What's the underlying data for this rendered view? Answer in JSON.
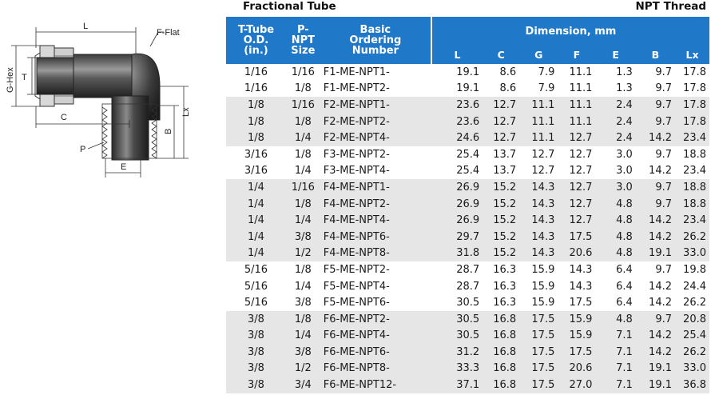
{
  "titles": {
    "left": "Fractional Tube",
    "right": "NPT Thread"
  },
  "diagram_labels": {
    "L": "L",
    "F": "F-Flat",
    "G": "G-Hex",
    "T": "T",
    "C": "C",
    "Lx": "Lx",
    "B": "B",
    "P": "P",
    "E": "E"
  },
  "header": {
    "tube_od": [
      "T-Tube",
      "O.D.",
      "(in.)"
    ],
    "p_npt": [
      "P-NPT",
      "Size"
    ],
    "ordering": [
      "Basic",
      "Ordering",
      "Number"
    ],
    "dimension": "Dimension, mm",
    "cols": [
      "L",
      "C",
      "G",
      "F",
      "E",
      "B",
      "Lx"
    ]
  },
  "rows": [
    {
      "shade": false,
      "cells": [
        "1/16",
        "1/16",
        "F1-ME-NPT1-",
        "19.1",
        "8.6",
        "7.9",
        "11.1",
        "1.3",
        "9.7",
        "17.8"
      ]
    },
    {
      "shade": false,
      "cells": [
        "1/16",
        "1/8",
        "F1-ME-NPT2-",
        "19.1",
        "8.6",
        "7.9",
        "11.1",
        "1.3",
        "9.7",
        "17.8"
      ]
    },
    {
      "shade": true,
      "cells": [
        "1/8",
        "1/16",
        "F2-ME-NPT1-",
        "23.6",
        "12.7",
        "11.1",
        "11.1",
        "2.4",
        "9.7",
        "17.8"
      ]
    },
    {
      "shade": true,
      "cells": [
        "1/8",
        "1/8",
        "F2-ME-NPT2-",
        "23.6",
        "12.7",
        "11.1",
        "11.1",
        "2.4",
        "9.7",
        "17.8"
      ]
    },
    {
      "shade": true,
      "cells": [
        "1/8",
        "1/4",
        "F2-ME-NPT4-",
        "24.6",
        "12.7",
        "11.1",
        "12.7",
        "2.4",
        "14.2",
        "23.4"
      ]
    },
    {
      "shade": false,
      "cells": [
        "3/16",
        "1/8",
        "F3-ME-NPT2-",
        "25.4",
        "13.7",
        "12.7",
        "12.7",
        "3.0",
        "9.7",
        "18.8"
      ]
    },
    {
      "shade": false,
      "cells": [
        "3/16",
        "1/4",
        "F3-ME-NPT4-",
        "25.4",
        "13.7",
        "12.7",
        "12.7",
        "3.0",
        "14.2",
        "23.4"
      ]
    },
    {
      "shade": true,
      "cells": [
        "1/4",
        "1/16",
        "F4-ME-NPT1-",
        "26.9",
        "15.2",
        "14.3",
        "12.7",
        "3.0",
        "9.7",
        "18.8"
      ]
    },
    {
      "shade": true,
      "cells": [
        "1/4",
        "1/8",
        "F4-ME-NPT2-",
        "26.9",
        "15.2",
        "14.3",
        "12.7",
        "4.8",
        "9.7",
        "18.8"
      ]
    },
    {
      "shade": true,
      "cells": [
        "1/4",
        "1/4",
        "F4-ME-NPT4-",
        "26.9",
        "15.2",
        "14.3",
        "12.7",
        "4.8",
        "14.2",
        "23.4"
      ]
    },
    {
      "shade": true,
      "cells": [
        "1/4",
        "3/8",
        "F4-ME-NPT6-",
        "29.7",
        "15.2",
        "14.3",
        "17.5",
        "4.8",
        "14.2",
        "26.2"
      ]
    },
    {
      "shade": true,
      "cells": [
        "1/4",
        "1/2",
        "F4-ME-NPT8-",
        "31.8",
        "15.2",
        "14.3",
        "20.6",
        "4.8",
        "19.1",
        "33.0"
      ]
    },
    {
      "shade": false,
      "cells": [
        "5/16",
        "1/8",
        "F5-ME-NPT2-",
        "28.7",
        "16.3",
        "15.9",
        "14.3",
        "6.4",
        "9.7",
        "19.8"
      ]
    },
    {
      "shade": false,
      "cells": [
        "5/16",
        "1/4",
        "F5-ME-NPT4-",
        "28.7",
        "16.3",
        "15.9",
        "14.3",
        "6.4",
        "14.2",
        "24.4"
      ]
    },
    {
      "shade": false,
      "cells": [
        "5/16",
        "3/8",
        "F5-ME-NPT6-",
        "30.5",
        "16.3",
        "15.9",
        "17.5",
        "6.4",
        "14.2",
        "26.2"
      ]
    },
    {
      "shade": true,
      "cells": [
        "3/8",
        "1/8",
        "F6-ME-NPT2-",
        "30.5",
        "16.8",
        "17.5",
        "15.9",
        "4.8",
        "9.7",
        "20.8"
      ]
    },
    {
      "shade": true,
      "cells": [
        "3/8",
        "1/4",
        "F6-ME-NPT4-",
        "30.5",
        "16.8",
        "17.5",
        "15.9",
        "7.1",
        "14.2",
        "25.4"
      ]
    },
    {
      "shade": true,
      "cells": [
        "3/8",
        "3/8",
        "F6-ME-NPT6-",
        "31.2",
        "16.8",
        "17.5",
        "17.5",
        "7.1",
        "14.2",
        "26.2"
      ]
    },
    {
      "shade": true,
      "cells": [
        "3/8",
        "1/2",
        "F6-ME-NPT8-",
        "33.3",
        "16.8",
        "17.5",
        "20.6",
        "7.1",
        "19.1",
        "33.0"
      ]
    },
    {
      "shade": true,
      "cells": [
        "3/8",
        "3/4",
        "F6-ME-NPT12-",
        "37.1",
        "16.8",
        "17.5",
        "27.0",
        "7.1",
        "19.1",
        "36.8"
      ]
    }
  ]
}
